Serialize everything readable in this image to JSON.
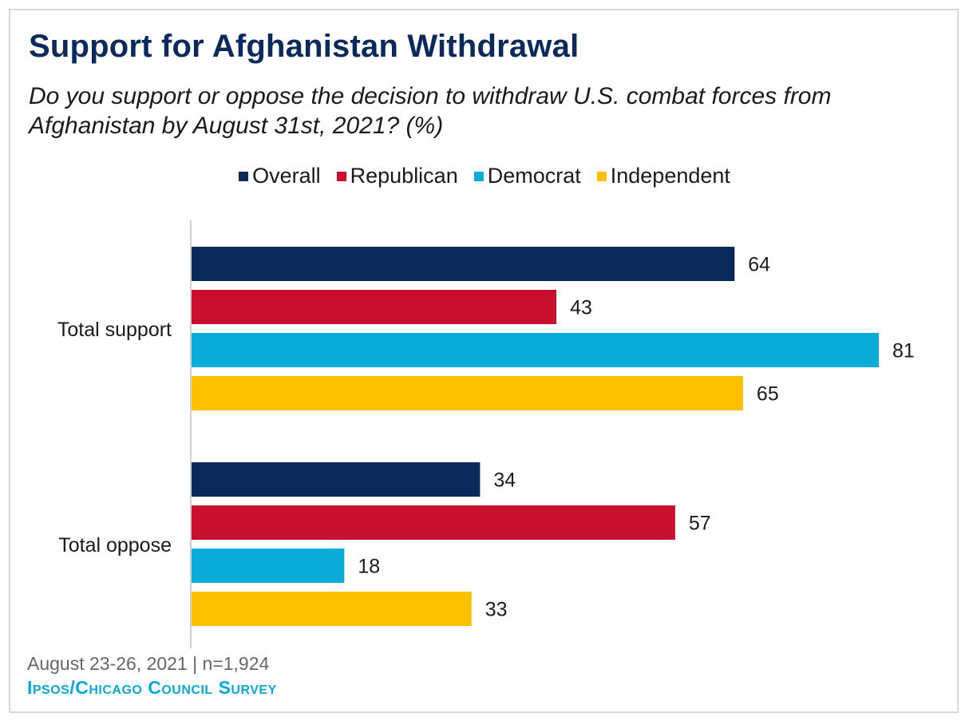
{
  "chart_data": {
    "type": "bar",
    "orientation": "horizontal",
    "title": "Support for Afghanistan Withdrawal",
    "subtitle": "Do you support or oppose the decision to withdraw U.S. combat forces from Afghanistan by August 31st, 2021? (%)",
    "categories": [
      "Total support",
      "Total oppose"
    ],
    "series": [
      {
        "name": "Overall",
        "color": "#0a2a5c",
        "values": [
          64,
          34
        ]
      },
      {
        "name": "Republican",
        "color": "#c8102e",
        "values": [
          43,
          57
        ]
      },
      {
        "name": "Democrat",
        "color": "#09acd8",
        "values": [
          81,
          18
        ]
      },
      {
        "name": "Independent",
        "color": "#fdc100",
        "values": [
          65,
          33
        ]
      }
    ],
    "xlim": [
      0,
      100
    ],
    "legend_position": "top",
    "grid": false,
    "data_labels": true
  },
  "footer": {
    "date_n": "August 23-26, 2021 | n=1,924",
    "source": "Ipsos/Chicago Council Survey"
  }
}
